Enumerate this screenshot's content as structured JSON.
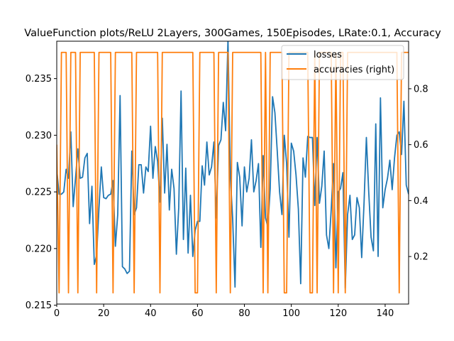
{
  "chart_data": {
    "type": "line",
    "title": "ValueFunction plots/ReLU 2Layers, 300Games, 150Episodes, LRate:0.1, Accuracy",
    "xlabel": "",
    "ylabel": "",
    "xlim": [
      0,
      150
    ],
    "ylim": [
      0.2151,
      0.2383
    ],
    "y2lim": [
      0.03,
      0.97
    ],
    "xticks": [
      0,
      20,
      40,
      60,
      80,
      100,
      120,
      140
    ],
    "yticks": [
      0.215,
      0.22,
      0.225,
      0.23,
      0.235
    ],
    "y2ticks": [
      0.2,
      0.4,
      0.6,
      0.8
    ],
    "grid": false,
    "legend_position": "top-right",
    "series": [
      {
        "name": "losses",
        "axis": "left",
        "color": "#1f77b4",
        "x": [
          0,
          1,
          2,
          3,
          4,
          5,
          6,
          7,
          8,
          9,
          10,
          11,
          12,
          13,
          14,
          15,
          16,
          17,
          18,
          19,
          20,
          21,
          22,
          23,
          24,
          25,
          26,
          27,
          28,
          29,
          30,
          31,
          32,
          33,
          34,
          35,
          36,
          37,
          38,
          39,
          40,
          41,
          42,
          43,
          44,
          45,
          46,
          47,
          48,
          49,
          50,
          51,
          52,
          53,
          54,
          55,
          56,
          57,
          58,
          59,
          60,
          61,
          62,
          63,
          64,
          65,
          66,
          67,
          68,
          69,
          70,
          71,
          72,
          73,
          74,
          75,
          76,
          77,
          78,
          79,
          80,
          81,
          82,
          83,
          84,
          85,
          86,
          87,
          88,
          89,
          90,
          91,
          92,
          93,
          94,
          95,
          96,
          97,
          98,
          99,
          100,
          101,
          102,
          103,
          104,
          105,
          106,
          107,
          108,
          109,
          110,
          111,
          112,
          113,
          114,
          115,
          116,
          117,
          118,
          119,
          120,
          121,
          122,
          123,
          124,
          125,
          126,
          127,
          128,
          129,
          130,
          131,
          132,
          133,
          134,
          135,
          136,
          137,
          138,
          139,
          140,
          141,
          142,
          143,
          144,
          145,
          146,
          147,
          148,
          149,
          150
        ],
        "y": [
          0.227,
          0.2248,
          0.2248,
          0.225,
          0.227,
          0.2262,
          0.2303,
          0.2237,
          0.2262,
          0.2288,
          0.2262,
          0.2263,
          0.228,
          0.2284,
          0.2222,
          0.2255,
          0.2186,
          0.2194,
          0.2236,
          0.2272,
          0.2245,
          0.2244,
          0.2247,
          0.2248,
          0.226,
          0.2202,
          0.223,
          0.2335,
          0.2184,
          0.2182,
          0.2178,
          0.218,
          0.2286,
          0.223,
          0.2236,
          0.2274,
          0.2274,
          0.2249,
          0.2272,
          0.2268,
          0.2308,
          0.2262,
          0.229,
          0.2277,
          0.2241,
          0.2315,
          0.2249,
          0.2292,
          0.2234,
          0.227,
          0.2253,
          0.2195,
          0.2236,
          0.2339,
          0.2208,
          0.2271,
          0.2196,
          0.2247,
          0.2193,
          0.2216,
          0.2224,
          0.2224,
          0.2273,
          0.2256,
          0.2294,
          0.2265,
          0.2272,
          0.2294,
          0.2227,
          0.2291,
          0.2296,
          0.2329,
          0.2304,
          0.2385,
          0.2264,
          0.2226,
          0.2166,
          0.2276,
          0.2263,
          0.222,
          0.2272,
          0.225,
          0.2262,
          0.2296,
          0.225,
          0.226,
          0.2275,
          0.2201,
          0.2282,
          0.2227,
          0.2219,
          0.2253,
          0.2334,
          0.232,
          0.2286,
          0.225,
          0.223,
          0.23,
          0.2275,
          0.221,
          0.2293,
          0.2286,
          0.2265,
          0.2235,
          0.2169,
          0.228,
          0.2263,
          0.2299,
          0.2298,
          0.2298,
          0.2238,
          0.2298,
          0.224,
          0.2255,
          0.2286,
          0.2212,
          0.22,
          0.2234,
          0.2275,
          0.2183,
          0.225,
          0.2253,
          0.2267,
          0.2165,
          0.223,
          0.2247,
          0.2208,
          0.2212,
          0.2245,
          0.2236,
          0.2192,
          0.224,
          0.2298,
          0.225,
          0.221,
          0.2198,
          0.231,
          0.2193,
          0.2333,
          0.2236,
          0.2252,
          0.2262,
          0.2278,
          0.2252,
          0.228,
          0.23,
          0.2303,
          0.2283,
          0.233,
          0.2256,
          0.2248
        ]
      },
      {
        "name": "accuracies (right)",
        "axis": "right",
        "color": "#ff7f0e",
        "x": [
          0,
          1,
          2,
          3,
          4,
          5,
          6,
          7,
          8,
          9,
          10,
          11,
          12,
          13,
          14,
          15,
          16,
          17,
          18,
          19,
          20,
          21,
          22,
          23,
          24,
          25,
          26,
          27,
          28,
          29,
          30,
          31,
          32,
          33,
          34,
          35,
          36,
          37,
          38,
          39,
          40,
          41,
          42,
          43,
          44,
          45,
          46,
          47,
          48,
          49,
          50,
          51,
          52,
          53,
          54,
          55,
          56,
          57,
          58,
          59,
          60,
          61,
          62,
          63,
          64,
          65,
          66,
          67,
          68,
          69,
          70,
          71,
          72,
          73,
          74,
          75,
          76,
          77,
          78,
          79,
          80,
          81,
          82,
          83,
          84,
          85,
          86,
          87,
          88,
          89,
          90,
          91,
          92,
          93,
          94,
          95,
          96,
          97,
          98,
          99,
          100,
          101,
          102,
          103,
          104,
          105,
          106,
          107,
          108,
          109,
          110,
          111,
          112,
          113,
          114,
          115,
          116,
          117,
          118,
          119,
          120,
          121,
          122,
          123,
          124,
          125,
          126,
          127,
          128,
          129,
          130,
          131,
          132,
          133,
          134,
          135,
          136,
          137,
          138,
          139,
          140,
          141,
          142,
          143,
          144,
          145,
          146,
          147,
          148,
          149,
          150
        ],
        "y": [
          0.6,
          0.07,
          0.93,
          0.93,
          0.93,
          0.07,
          0.93,
          0.93,
          0.93,
          0.07,
          0.93,
          0.93,
          0.93,
          0.93,
          0.93,
          0.93,
          0.93,
          0.07,
          0.93,
          0.93,
          0.93,
          0.93,
          0.93,
          0.93,
          0.07,
          0.93,
          0.93,
          0.93,
          0.93,
          0.93,
          0.93,
          0.93,
          0.93,
          0.07,
          0.93,
          0.93,
          0.93,
          0.93,
          0.93,
          0.93,
          0.93,
          0.93,
          0.93,
          0.93,
          0.07,
          0.93,
          0.93,
          0.93,
          0.93,
          0.93,
          0.93,
          0.93,
          0.93,
          0.93,
          0.93,
          0.93,
          0.93,
          0.93,
          0.93,
          0.07,
          0.07,
          0.93,
          0.93,
          0.93,
          0.93,
          0.93,
          0.93,
          0.93,
          0.07,
          0.93,
          0.93,
          0.93,
          0.93,
          0.93,
          0.07,
          0.93,
          0.93,
          0.93,
          0.93,
          0.93,
          0.93,
          0.93,
          0.93,
          0.93,
          0.93,
          0.93,
          0.93,
          0.93,
          0.07,
          0.93,
          0.07,
          0.93,
          0.93,
          0.93,
          0.93,
          0.93,
          0.93,
          0.07,
          0.07,
          0.93,
          0.93,
          0.93,
          0.93,
          0.93,
          0.93,
          0.93,
          0.93,
          0.93,
          0.07,
          0.07,
          0.93,
          0.07,
          0.93,
          0.93,
          0.93,
          0.93,
          0.93,
          0.93,
          0.07,
          0.93,
          0.07,
          0.93,
          0.93,
          0.07,
          0.93,
          0.93,
          0.93,
          0.93,
          0.93,
          0.93,
          0.93,
          0.93,
          0.93,
          0.93,
          0.93,
          0.93,
          0.93,
          0.93,
          0.93,
          0.93,
          0.93,
          0.93,
          0.93,
          0.93,
          0.93,
          0.93,
          0.07,
          0.93,
          0.93,
          0.93,
          0.93
        ]
      }
    ]
  }
}
